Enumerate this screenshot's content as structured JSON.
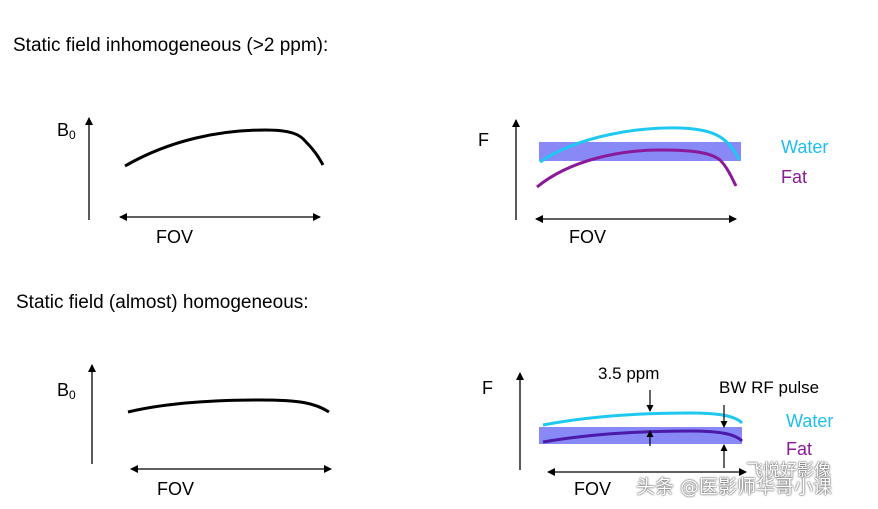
{
  "headings": {
    "inhomogeneous": "Static field inhomogeneous (>2 ppm):",
    "homogeneous": "Static field (almost) homogeneous:"
  },
  "axes": {
    "b0": "B",
    "b0_sub": "0",
    "f": "F",
    "fov": "FOV"
  },
  "legend": {
    "water": "Water",
    "fat": "Fat"
  },
  "annotations": {
    "ppm": "3.5 ppm",
    "bw": "BW RF pulse"
  },
  "colors": {
    "water": "#1EC8F0",
    "fat": "#8B1A9A",
    "fat_dark": "#4B1AA8",
    "band": "#7B7BF5",
    "legend_water": "#1EBEF0",
    "legend_fat": "#8B1A9A"
  },
  "watermark": {
    "text": "头条 @医影师华哥小课",
    "small": "飞悦好影像"
  }
}
